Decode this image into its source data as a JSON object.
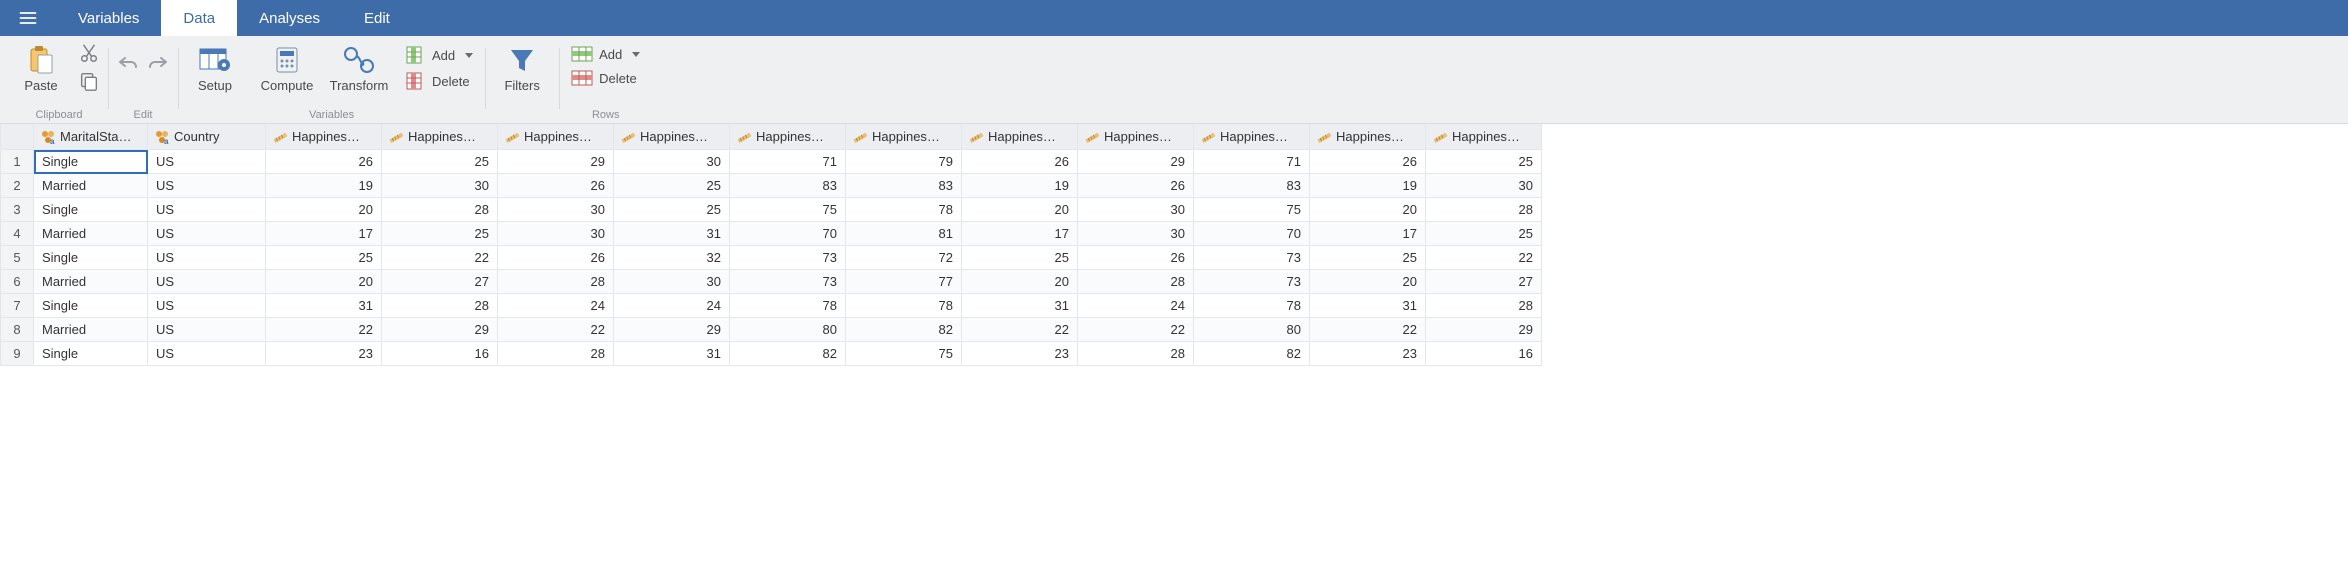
{
  "colors": {
    "menubar_bg": "#3e6ca8",
    "ribbon_bg": "#eef0f2",
    "grid_border": "#e3e6ea",
    "selected_outline": "#2f6fb5",
    "icon_nominal": "#e59a2c",
    "icon_continuous": "#e59a2c"
  },
  "menubar": {
    "tabs": [
      "Variables",
      "Data",
      "Analyses",
      "Edit"
    ],
    "active_index": 1
  },
  "ribbon": {
    "clipboard": {
      "paste": "Paste",
      "group_label": "Clipboard"
    },
    "edit": {
      "group_label": "Edit"
    },
    "variables": {
      "setup": "Setup",
      "compute": "Compute",
      "transform": "Transform",
      "add": "Add",
      "delete": "Delete",
      "group_label": "Variables"
    },
    "filters": {
      "label": "Filters"
    },
    "rows": {
      "add": "Add",
      "delete": "Delete",
      "group_label": "Rows"
    }
  },
  "grid": {
    "columns": [
      {
        "name": "MaritalSta…",
        "type": "nominal"
      },
      {
        "name": "Country",
        "type": "nominal"
      },
      {
        "name": "Happines…",
        "type": "continuous"
      },
      {
        "name": "Happines…",
        "type": "continuous"
      },
      {
        "name": "Happines…",
        "type": "continuous"
      },
      {
        "name": "Happines…",
        "type": "continuous"
      },
      {
        "name": "Happines…",
        "type": "continuous"
      },
      {
        "name": "Happines…",
        "type": "continuous"
      },
      {
        "name": "Happines…",
        "type": "continuous"
      },
      {
        "name": "Happines…",
        "type": "continuous"
      },
      {
        "name": "Happines…",
        "type": "continuous"
      },
      {
        "name": "Happines…",
        "type": "continuous"
      },
      {
        "name": "Happines…",
        "type": "continuous"
      }
    ],
    "selected": {
      "row": 0,
      "col": 0
    },
    "rows": [
      [
        "Single",
        "US",
        26,
        25,
        29,
        30,
        71,
        79,
        26,
        29,
        71,
        26,
        25
      ],
      [
        "Married",
        "US",
        19,
        30,
        26,
        25,
        83,
        83,
        19,
        26,
        83,
        19,
        30
      ],
      [
        "Single",
        "US",
        20,
        28,
        30,
        25,
        75,
        78,
        20,
        30,
        75,
        20,
        28
      ],
      [
        "Married",
        "US",
        17,
        25,
        30,
        31,
        70,
        81,
        17,
        30,
        70,
        17,
        25
      ],
      [
        "Single",
        "US",
        25,
        22,
        26,
        32,
        73,
        72,
        25,
        26,
        73,
        25,
        22
      ],
      [
        "Married",
        "US",
        20,
        27,
        28,
        30,
        73,
        77,
        20,
        28,
        73,
        20,
        27
      ],
      [
        "Single",
        "US",
        31,
        28,
        24,
        24,
        78,
        78,
        31,
        24,
        78,
        31,
        28
      ],
      [
        "Married",
        "US",
        22,
        29,
        22,
        29,
        80,
        82,
        22,
        22,
        80,
        22,
        29
      ],
      [
        "Single",
        "US",
        23,
        16,
        28,
        31,
        82,
        75,
        23,
        28,
        82,
        23,
        16
      ]
    ]
  }
}
